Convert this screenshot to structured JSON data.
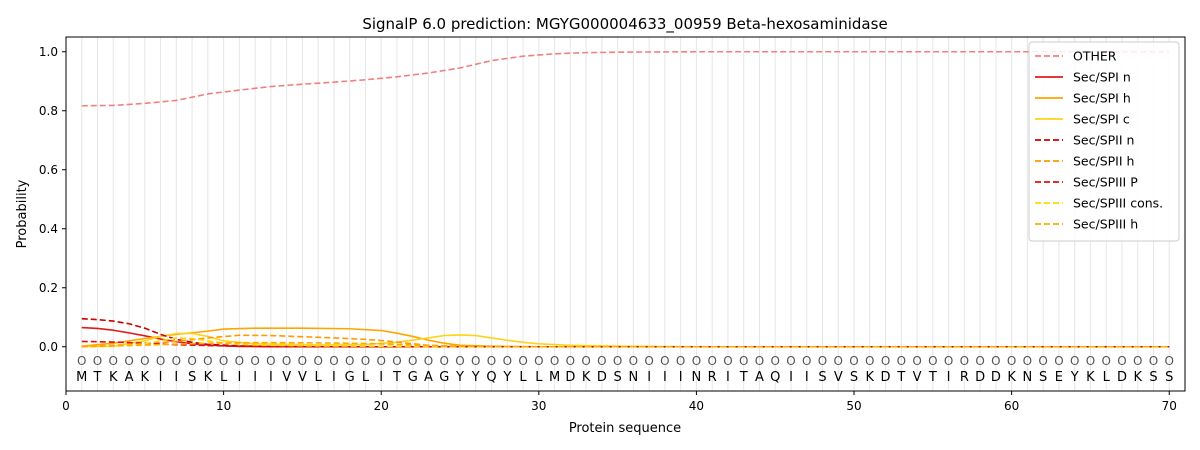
{
  "chart_data": {
    "type": "line",
    "title": "SignalP 6.0 prediction: MGYG000004633_00959 Beta-hexosaminidase",
    "xlabel": "Protein sequence",
    "ylabel": "Probability",
    "xlim": [
      0,
      71
    ],
    "ylim": [
      -0.15,
      1.05
    ],
    "xticks": [
      "0",
      "10",
      "20",
      "30",
      "40",
      "50",
      "60",
      "70"
    ],
    "yticks": [
      "0.0",
      "0.2",
      "0.4",
      "0.6",
      "0.8",
      "1.0"
    ],
    "legend_position": "top-right",
    "sequence": [
      "M",
      "T",
      "K",
      "A",
      "K",
      "I",
      "I",
      "S",
      "K",
      "L",
      "I",
      "I",
      "I",
      "V",
      "V",
      "L",
      "I",
      "G",
      "L",
      "I",
      "T",
      "G",
      "A",
      "G",
      "Y",
      "Y",
      "Q",
      "Y",
      "L",
      "L",
      "M",
      "D",
      "K",
      "D",
      "S",
      "N",
      "I",
      "I",
      "I",
      "N",
      "R",
      "I",
      "T",
      "A",
      "Q",
      "I",
      "I",
      "S",
      "V",
      "S",
      "K",
      "D",
      "T",
      "V",
      "T",
      "I",
      "R",
      "D",
      "D",
      "K",
      "N",
      "S",
      "E",
      "Y",
      "K",
      "L",
      "D",
      "K",
      "S",
      "S"
    ],
    "region_labels": [
      "O",
      "O",
      "O",
      "O",
      "O",
      "O",
      "O",
      "O",
      "O",
      "O",
      "O",
      "O",
      "O",
      "O",
      "O",
      "O",
      "O",
      "O",
      "O",
      "O",
      "O",
      "O",
      "O",
      "O",
      "O",
      "O",
      "O",
      "O",
      "O",
      "O",
      "O",
      "O",
      "O",
      "O",
      "O",
      "O",
      "O",
      "O",
      "O",
      "O",
      "O",
      "O",
      "O",
      "O",
      "O",
      "O",
      "O",
      "O",
      "O",
      "O",
      "O",
      "O",
      "O",
      "O",
      "O",
      "O",
      "O",
      "O",
      "O",
      "O",
      "O",
      "O",
      "O",
      "O",
      "O",
      "O",
      "O",
      "O",
      "O",
      "O"
    ],
    "series": [
      {
        "name": "OTHER",
        "color": "#f08080",
        "dash": "dashed",
        "points": [
          [
            1,
            0.817
          ],
          [
            3,
            0.818
          ],
          [
            5,
            0.825
          ],
          [
            7,
            0.835
          ],
          [
            9,
            0.857
          ],
          [
            11,
            0.87
          ],
          [
            13,
            0.882
          ],
          [
            15,
            0.89
          ],
          [
            17,
            0.897
          ],
          [
            19,
            0.905
          ],
          [
            21,
            0.915
          ],
          [
            23,
            0.928
          ],
          [
            25,
            0.945
          ],
          [
            27,
            0.97
          ],
          [
            29,
            0.985
          ],
          [
            31,
            0.993
          ],
          [
            33,
            0.997
          ],
          [
            36,
            0.999
          ],
          [
            40,
            1.0
          ],
          [
            50,
            1.0
          ],
          [
            60,
            1.0
          ],
          [
            70,
            1.0
          ]
        ]
      },
      {
        "name": "Sec/SPI n",
        "color": "#e31a1c",
        "dash": "solid",
        "points": [
          [
            1,
            0.065
          ],
          [
            2,
            0.062
          ],
          [
            3,
            0.056
          ],
          [
            4,
            0.047
          ],
          [
            5,
            0.037
          ],
          [
            6,
            0.026
          ],
          [
            7,
            0.017
          ],
          [
            8,
            0.01
          ],
          [
            9,
            0.006
          ],
          [
            10,
            0.003
          ],
          [
            11,
            0.001
          ],
          [
            13,
            0.0
          ],
          [
            70,
            0.0
          ]
        ]
      },
      {
        "name": "Sec/SPI h",
        "color": "#ffa500",
        "dash": "solid",
        "points": [
          [
            1,
            0.002
          ],
          [
            3,
            0.012
          ],
          [
            5,
            0.028
          ],
          [
            7,
            0.042
          ],
          [
            9,
            0.053
          ],
          [
            10,
            0.06
          ],
          [
            12,
            0.063
          ],
          [
            15,
            0.063
          ],
          [
            18,
            0.061
          ],
          [
            20,
            0.055
          ],
          [
            21,
            0.046
          ],
          [
            22,
            0.035
          ],
          [
            23,
            0.022
          ],
          [
            24,
            0.012
          ],
          [
            25,
            0.005
          ],
          [
            27,
            0.002
          ],
          [
            30,
            0.0
          ],
          [
            70,
            0.0
          ]
        ]
      },
      {
        "name": "Sec/SPI c",
        "color": "#ffd21a",
        "dash": "solid",
        "points": [
          [
            1,
            0.0
          ],
          [
            3,
            0.002
          ],
          [
            5,
            0.02
          ],
          [
            6,
            0.035
          ],
          [
            7,
            0.045
          ],
          [
            8,
            0.045
          ],
          [
            9,
            0.035
          ],
          [
            10,
            0.02
          ],
          [
            12,
            0.01
          ],
          [
            16,
            0.006
          ],
          [
            19,
            0.008
          ],
          [
            21,
            0.015
          ],
          [
            23,
            0.03
          ],
          [
            24,
            0.038
          ],
          [
            25,
            0.04
          ],
          [
            26,
            0.038
          ],
          [
            27,
            0.03
          ],
          [
            28,
            0.022
          ],
          [
            29,
            0.015
          ],
          [
            30,
            0.01
          ],
          [
            32,
            0.005
          ],
          [
            35,
            0.002
          ],
          [
            40,
            0.0
          ],
          [
            70,
            0.0
          ]
        ]
      },
      {
        "name": "Sec/SPII n",
        "color": "#cc0000",
        "dash": "dashed",
        "points": [
          [
            1,
            0.095
          ],
          [
            2,
            0.092
          ],
          [
            3,
            0.087
          ],
          [
            4,
            0.078
          ],
          [
            5,
            0.063
          ],
          [
            6,
            0.042
          ],
          [
            7,
            0.025
          ],
          [
            8,
            0.015
          ],
          [
            9,
            0.008
          ],
          [
            11,
            0.003
          ],
          [
            13,
            0.001
          ],
          [
            15,
            0.0
          ],
          [
            70,
            0.0
          ]
        ]
      },
      {
        "name": "Sec/SPII h",
        "color": "#ff9900",
        "dash": "dashed",
        "points": [
          [
            1,
            0.001
          ],
          [
            3,
            0.005
          ],
          [
            5,
            0.01
          ],
          [
            7,
            0.018
          ],
          [
            9,
            0.03
          ],
          [
            11,
            0.039
          ],
          [
            13,
            0.038
          ],
          [
            15,
            0.034
          ],
          [
            17,
            0.03
          ],
          [
            19,
            0.025
          ],
          [
            20,
            0.021
          ],
          [
            21,
            0.016
          ],
          [
            22,
            0.01
          ],
          [
            23,
            0.005
          ],
          [
            25,
            0.002
          ],
          [
            28,
            0.0
          ],
          [
            70,
            0.0
          ]
        ]
      },
      {
        "name": "Sec/SPIII P",
        "color": "#dd1111",
        "dash": "dashed",
        "points": [
          [
            1,
            0.018
          ],
          [
            3,
            0.016
          ],
          [
            5,
            0.012
          ],
          [
            7,
            0.007
          ],
          [
            9,
            0.004
          ],
          [
            11,
            0.002
          ],
          [
            14,
            0.001
          ],
          [
            17,
            0.0
          ],
          [
            70,
            0.0
          ]
        ]
      },
      {
        "name": "Sec/SPIII cons.",
        "color": "#ffd700",
        "dash": "dashed",
        "points": [
          [
            1,
            0.0
          ],
          [
            3,
            0.003
          ],
          [
            5,
            0.01
          ],
          [
            6,
            0.02
          ],
          [
            7,
            0.03
          ],
          [
            8,
            0.028
          ],
          [
            9,
            0.02
          ],
          [
            10,
            0.012
          ],
          [
            12,
            0.006
          ],
          [
            16,
            0.003
          ],
          [
            20,
            0.002
          ],
          [
            25,
            0.0
          ],
          [
            70,
            0.0
          ]
        ]
      },
      {
        "name": "Sec/SPIII h",
        "color": "#ffaa00",
        "dash": "dashed",
        "points": [
          [
            1,
            0.0
          ],
          [
            4,
            0.004
          ],
          [
            7,
            0.009
          ],
          [
            10,
            0.013
          ],
          [
            13,
            0.014
          ],
          [
            16,
            0.013
          ],
          [
            19,
            0.011
          ],
          [
            21,
            0.008
          ],
          [
            23,
            0.004
          ],
          [
            25,
            0.001
          ],
          [
            27,
            0.0
          ],
          [
            70,
            0.0
          ]
        ]
      }
    ]
  }
}
